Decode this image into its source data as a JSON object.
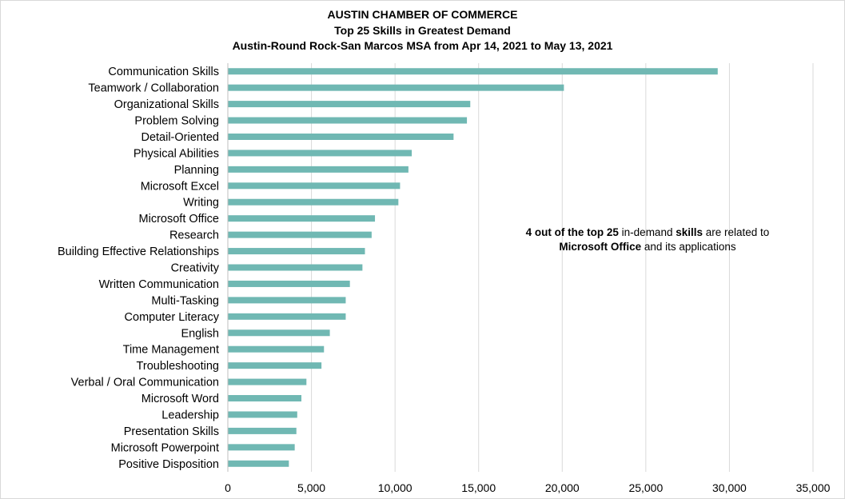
{
  "chart_data": {
    "type": "bar",
    "orientation": "horizontal",
    "title": "AUSTIN CHAMBER OF COMMERCE",
    "subtitle": "Top 25 Skills in Greatest Demand",
    "subtitle2": "Austin-Round Rock-San Marcos MSA from Apr 14, 2021 to May 13, 2021",
    "categories": [
      "Communication Skills",
      "Teamwork / Collaboration",
      "Organizational Skills",
      "Problem Solving",
      "Detail-Oriented",
      "Physical Abilities",
      "Planning",
      "Microsoft Excel",
      "Writing",
      "Microsoft Office",
      "Research",
      "Building Effective Relationships",
      "Creativity",
      "Written Communication",
      "Multi-Tasking",
      "Computer Literacy",
      "English",
      "Time Management",
      "Troubleshooting",
      "Verbal / Oral Communication",
      "Microsoft Word",
      "Leadership",
      "Presentation Skills",
      "Microsoft Powerpoint",
      "Positive Disposition"
    ],
    "values": [
      29300,
      20100,
      14500,
      14300,
      13500,
      11000,
      10800,
      10300,
      10200,
      8800,
      8600,
      8200,
      8050,
      7300,
      7050,
      7050,
      6100,
      5750,
      5600,
      4700,
      4400,
      4150,
      4100,
      4000,
      3650
    ],
    "xlim": [
      0,
      35000
    ],
    "xticks": [
      0,
      5000,
      10000,
      15000,
      20000,
      25000,
      30000,
      35000
    ],
    "xtick_labels": [
      "0",
      "5,000",
      "10,000",
      "15,000",
      "20,000",
      "25,000",
      "30,000",
      "35,000"
    ],
    "grid": "vertical",
    "bar_color": "#70b8b3",
    "annotation": {
      "p1": "4 out of the top 25",
      "p2": " in-demand ",
      "p3": "skills",
      "p4": " are related to",
      "p5": "Microsoft Office",
      "p6": " and its applications"
    }
  }
}
